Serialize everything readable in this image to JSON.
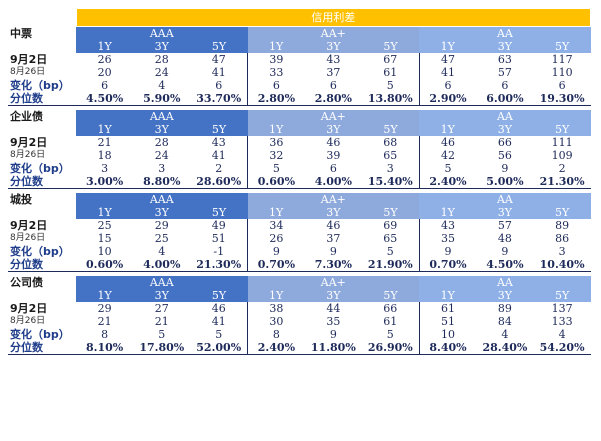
{
  "title": "信用利差",
  "labels": {
    "d1": "9月2日",
    "d2": "8月26日",
    "chg": "变化（bp）",
    "pct": "分位数"
  },
  "ratings": [
    "AAA",
    "AA+",
    "AA"
  ],
  "tenors": [
    "1Y",
    "3Y",
    "5Y"
  ],
  "sections": [
    {
      "name": "中票",
      "d1": [
        "26",
        "28",
        "47",
        "39",
        "43",
        "67",
        "47",
        "63",
        "117"
      ],
      "d2": [
        "20",
        "24",
        "41",
        "33",
        "37",
        "61",
        "41",
        "57",
        "110"
      ],
      "chg": [
        "6",
        "4",
        "6",
        "6",
        "6",
        "5",
        "6",
        "6",
        "6"
      ],
      "pct": [
        "4.50%",
        "5.90%",
        "33.70%",
        "2.80%",
        "2.80%",
        "13.80%",
        "2.90%",
        "6.00%",
        "19.30%"
      ]
    },
    {
      "name": "企业债",
      "d1": [
        "21",
        "28",
        "43",
        "36",
        "46",
        "68",
        "46",
        "66",
        "111"
      ],
      "d2": [
        "18",
        "24",
        "41",
        "32",
        "39",
        "65",
        "42",
        "56",
        "109"
      ],
      "chg": [
        "3",
        "3",
        "2",
        "5",
        "6",
        "3",
        "5",
        "9",
        "2"
      ],
      "pct": [
        "3.00%",
        "8.80%",
        "28.60%",
        "0.60%",
        "4.00%",
        "15.40%",
        "2.40%",
        "5.00%",
        "21.30%"
      ]
    },
    {
      "name": "城投",
      "d1": [
        "25",
        "29",
        "49",
        "34",
        "46",
        "69",
        "43",
        "57",
        "89"
      ],
      "d2": [
        "15",
        "25",
        "51",
        "26",
        "37",
        "65",
        "35",
        "48",
        "86"
      ],
      "chg": [
        "10",
        "4",
        "-1",
        "9",
        "9",
        "5",
        "9",
        "9",
        "3"
      ],
      "pct": [
        "0.60%",
        "4.00%",
        "21.30%",
        "0.70%",
        "7.30%",
        "21.90%",
        "0.70%",
        "4.50%",
        "10.40%"
      ]
    },
    {
      "name": "公司债",
      "d1": [
        "29",
        "27",
        "46",
        "38",
        "44",
        "66",
        "61",
        "89",
        "137"
      ],
      "d2": [
        "21",
        "21",
        "41",
        "30",
        "35",
        "61",
        "51",
        "84",
        "133"
      ],
      "chg": [
        "8",
        "5",
        "5",
        "8",
        "9",
        "5",
        "10",
        "4",
        "4"
      ],
      "pct": [
        "8.10%",
        "17.80%",
        "52.00%",
        "2.40%",
        "11.80%",
        "26.90%",
        "8.40%",
        "28.40%",
        "54.20%"
      ]
    }
  ],
  "colors": {
    "title_bg": "#ffc000",
    "aaa_bg": "#4472c4",
    "aap_bg": "#8ea9db",
    "aa_bg": "#8eb0e6",
    "text": "#1e2a5a"
  }
}
